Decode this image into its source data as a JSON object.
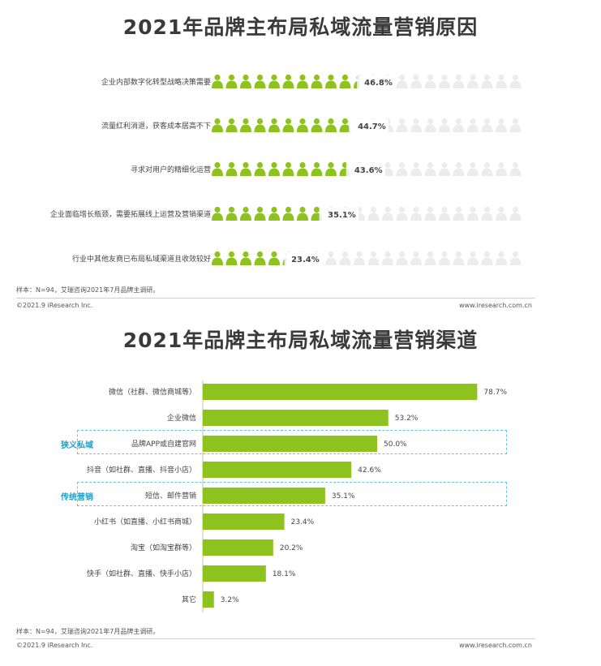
{
  "colors": {
    "accent": "#8ec21f",
    "inactive": "#ececec",
    "label": "#444444",
    "tag": "#1fa0c8"
  },
  "icon": "person-icon",
  "chart_data": [
    {
      "type": "pictorial-bar",
      "title": "2021年品牌主布局私域流量营销原因",
      "unit": "%",
      "categories": [
        "企业内部数字化转型战略决策需要",
        "流量红利消退，获客成本居高不下",
        "寻求对用户的精细化运营",
        "企业面临增长瓶颈，需要拓展线上运营及营销渠道",
        "行业中其他友商已布局私域渠道且收效较好"
      ],
      "values": [
        46.8,
        44.7,
        43.6,
        35.1,
        23.4
      ],
      "value_labels": [
        "46.8%",
        "44.7%",
        "43.6%",
        "35.1%",
        "23.4%"
      ],
      "xlim": [
        0,
        100
      ]
    },
    {
      "type": "bar",
      "orientation": "horizontal",
      "title": "2021年品牌主布局私域流量营销渠道",
      "unit": "%",
      "categories": [
        "微信（社群、微信商城等）",
        "企业微信",
        "品牌APP或自建官网",
        "抖音（如社群、直播、抖音小店）",
        "短信、邮件营销",
        "小红书（如直播、小红书商城）",
        "淘宝（如淘宝群等）",
        "快手（如社群、直播、快手小店）",
        "其它"
      ],
      "values": [
        78.7,
        53.2,
        50.0,
        42.6,
        35.1,
        23.4,
        20.2,
        18.1,
        3.2
      ],
      "value_labels": [
        "78.7%",
        "53.2%",
        "50.0%",
        "42.6%",
        "35.1%",
        "23.4%",
        "20.2%",
        "18.1%",
        "3.2%"
      ],
      "highlights": [
        {
          "label": "狭义私域",
          "category_index": 2
        },
        {
          "label": "传统营销",
          "category_index": 4
        }
      ],
      "xlim": [
        0,
        100
      ]
    }
  ],
  "footer1": {
    "note": "样本：N=94，艾瑞咨询2021年7月品牌主调研。",
    "copyright": "©2021.9 iResearch Inc.",
    "website": "www.iresearch.com.cn"
  },
  "footer2": {
    "note": "样本：N=94，艾瑞咨询2021年7月品牌主调研。",
    "copyright": "©2021.9 iResearch Inc.",
    "website": "www.iresearch.com.cn"
  }
}
